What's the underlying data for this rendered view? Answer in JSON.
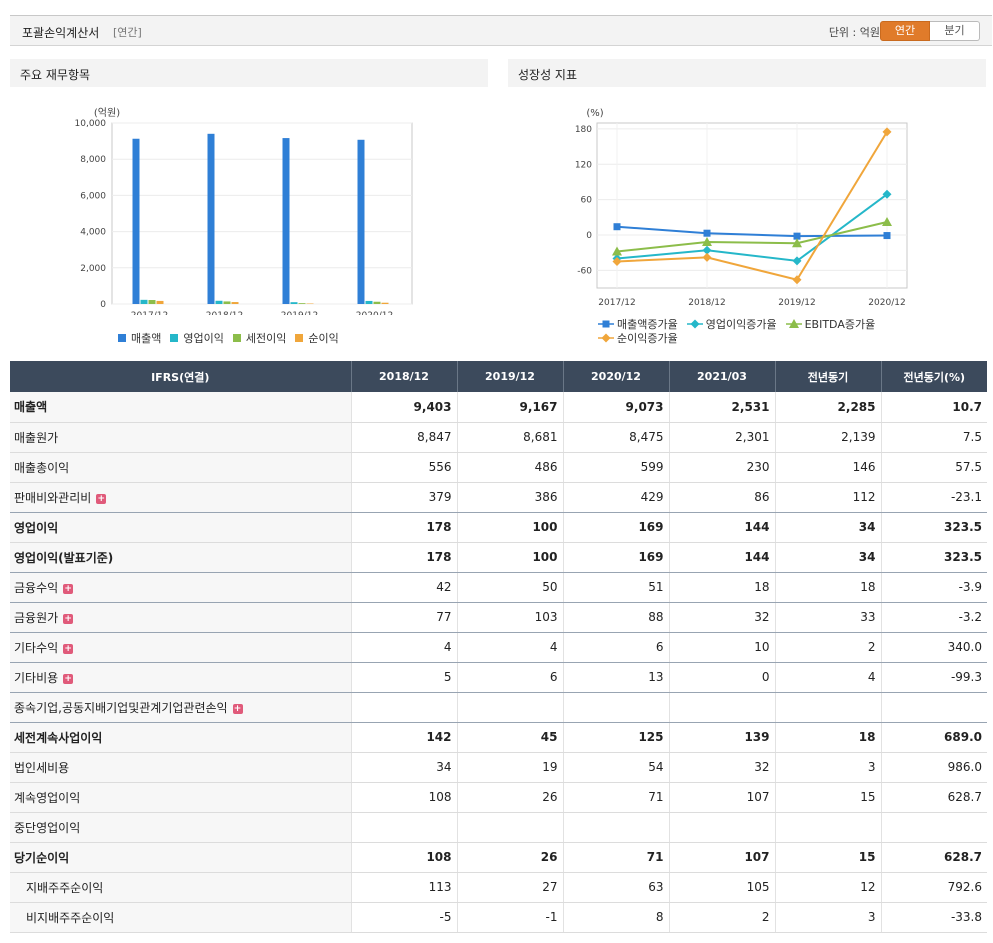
{
  "header": {
    "title": "포괄손익계산서",
    "subtitle": "[연간]",
    "unit": "단위 : 억원",
    "toggle_annual": "연간",
    "toggle_quarter": "분기",
    "accent_color": "#e07b2a"
  },
  "panels": {
    "left_title": "주요 재무항목",
    "right_title": "성장성 지표"
  },
  "chart_data": [
    {
      "type": "bar",
      "ylabel": "(억원)",
      "categories": [
        "2017/12",
        "2018/12",
        "2019/12",
        "2020/12"
      ],
      "ylim": [
        0,
        10000
      ],
      "yticks": [
        "0",
        "2,000",
        "4,000",
        "6,000",
        "8,000",
        "10,000"
      ],
      "grid": true,
      "legend_position": "bottom",
      "series": [
        {
          "name": "매출액",
          "color": "#2f7fd6",
          "values": [
            9130,
            9403,
            9167,
            9073
          ]
        },
        {
          "name": "영업이익",
          "color": "#25b7c9",
          "values": [
            230,
            178,
            100,
            169
          ]
        },
        {
          "name": "세전이익",
          "color": "#8cbd4a",
          "values": [
            220,
            142,
            45,
            125
          ]
        },
        {
          "name": "순이익",
          "color": "#f0a63b",
          "values": [
            170,
            108,
            26,
            71
          ]
        }
      ]
    },
    {
      "type": "line",
      "ylabel": "(%)",
      "categories": [
        "2017/12",
        "2018/12",
        "2019/12",
        "2020/12"
      ],
      "ylim": [
        -90,
        190
      ],
      "yticks": [
        "-60",
        "0",
        "60",
        "120",
        "180"
      ],
      "grid": true,
      "legend_position": "bottom",
      "series": [
        {
          "name": "매출액증가율",
          "color": "#2f7fd6",
          "marker": "square",
          "values": [
            14,
            3,
            -2,
            -1
          ]
        },
        {
          "name": "영업이익증가율",
          "color": "#25b7c9",
          "marker": "diamond",
          "values": [
            -40,
            -26,
            -44,
            69
          ]
        },
        {
          "name": "EBITDA증가율",
          "color": "#8cbd4a",
          "marker": "triangle",
          "values": [
            -28,
            -12,
            -14,
            22
          ]
        },
        {
          "name": "순이익증가율",
          "color": "#f0a63b",
          "marker": "diamond",
          "values": [
            -45,
            -38,
            -76,
            175
          ]
        }
      ]
    }
  ],
  "table": {
    "headers": [
      "IFRS(연결)",
      "2018/12",
      "2019/12",
      "2020/12",
      "2021/03",
      "전년동기",
      "전년동기(%)"
    ],
    "rows": [
      {
        "label": "매출액",
        "values": [
          "9,403",
          "9,167",
          "9,073",
          "2,531",
          "2,285",
          "10.7"
        ],
        "bold": true
      },
      {
        "label": "매출원가",
        "values": [
          "8,847",
          "8,681",
          "8,475",
          "2,301",
          "2,139",
          "7.5"
        ]
      },
      {
        "label": "매출총이익",
        "values": [
          "556",
          "486",
          "599",
          "230",
          "146",
          "57.5"
        ]
      },
      {
        "label": "판매비와관리비",
        "plus": true,
        "values": [
          "379",
          "386",
          "429",
          "86",
          "112",
          "-23.1"
        ],
        "sep": true
      },
      {
        "label": "영업이익",
        "values": [
          "178",
          "100",
          "169",
          "144",
          "34",
          "323.5"
        ],
        "bold": true
      },
      {
        "label": "영업이익(발표기준)",
        "values": [
          "178",
          "100",
          "169",
          "144",
          "34",
          "323.5"
        ],
        "bold": true,
        "sep": true
      },
      {
        "label": "금융수익",
        "plus": true,
        "values": [
          "42",
          "50",
          "51",
          "18",
          "18",
          "-3.9"
        ],
        "sep": true
      },
      {
        "label": "금융원가",
        "plus": true,
        "values": [
          "77",
          "103",
          "88",
          "32",
          "33",
          "-3.2"
        ],
        "sep": true
      },
      {
        "label": "기타수익",
        "plus": true,
        "values": [
          "4",
          "4",
          "6",
          "10",
          "2",
          "340.0"
        ],
        "sep": true
      },
      {
        "label": "기타비용",
        "plus": true,
        "values": [
          "5",
          "6",
          "13",
          "0",
          "4",
          "-99.3"
        ],
        "sep": true
      },
      {
        "label": "종속기업,공동지배기업및관계기업관련손익",
        "plus": true,
        "values": [
          "",
          "",
          "",
          "",
          "",
          ""
        ],
        "sep": true
      },
      {
        "label": "세전계속사업이익",
        "values": [
          "142",
          "45",
          "125",
          "139",
          "18",
          "689.0"
        ],
        "bold": true
      },
      {
        "label": "법인세비용",
        "values": [
          "34",
          "19",
          "54",
          "32",
          "3",
          "986.0"
        ]
      },
      {
        "label": "계속영업이익",
        "values": [
          "108",
          "26",
          "71",
          "107",
          "15",
          "628.7"
        ]
      },
      {
        "label": "중단영업이익",
        "values": [
          "",
          "",
          "",
          "",
          "",
          ""
        ]
      },
      {
        "label": "당기순이익",
        "values": [
          "108",
          "26",
          "71",
          "107",
          "15",
          "628.7"
        ],
        "bold": true
      },
      {
        "label": "지배주주순이익",
        "indent": true,
        "values": [
          "113",
          "27",
          "63",
          "105",
          "12",
          "792.6"
        ]
      },
      {
        "label": "비지배주주순이익",
        "indent": true,
        "values": [
          "-5",
          "-1",
          "8",
          "2",
          "3",
          "-33.8"
        ]
      }
    ]
  }
}
